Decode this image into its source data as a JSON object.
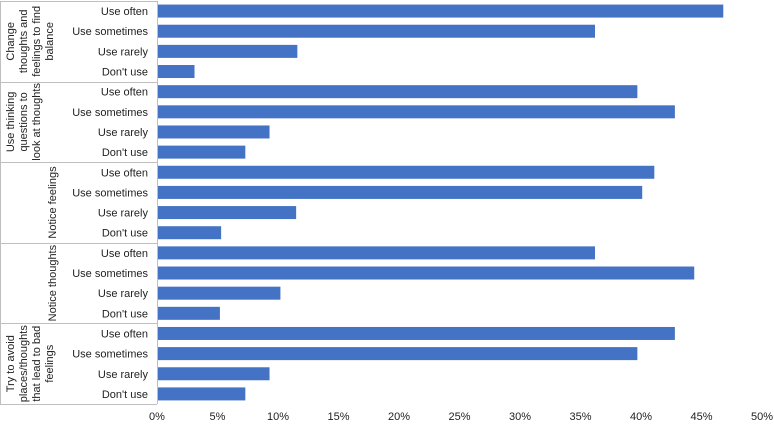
{
  "chart_data": {
    "type": "bar",
    "orientation": "horizontal",
    "title": "",
    "xlabel": "",
    "ylabel": "",
    "xlim": [
      0,
      50
    ],
    "x_tick_labels": [
      "0%",
      "5%",
      "10%",
      "15%",
      "20%",
      "25%",
      "30%",
      "35%",
      "40%",
      "45%",
      "50%"
    ],
    "x_ticks": [
      0,
      5,
      10,
      15,
      20,
      25,
      30,
      35,
      40,
      45,
      50
    ],
    "grid": false,
    "bar_color": "#4472C4",
    "groups": [
      {
        "name": "Change thoughts and feelings to find balance",
        "label_lines": [
          "Change",
          "thoughts and",
          "feelings to find",
          "balance"
        ],
        "categories": [
          "Use often",
          "Use sometimes",
          "Use rarely",
          "Don't use"
        ],
        "values": [
          46.8,
          36.2,
          11.6,
          3.1
        ]
      },
      {
        "name": "Use thinking questions to look at thoughts",
        "label_lines": [
          "Use thinking",
          "questions to",
          "look at thoughts"
        ],
        "categories": [
          "Use often",
          "Use sometimes",
          "Use rarely",
          "Don't use"
        ],
        "values": [
          39.7,
          42.8,
          9.3,
          7.3
        ]
      },
      {
        "name": "Notice feelings",
        "label_lines": [
          "Notice feelings"
        ],
        "categories": [
          "Use often",
          "Use sometimes",
          "Use rarely",
          "Don't use"
        ],
        "values": [
          41.1,
          40.1,
          11.5,
          5.3
        ]
      },
      {
        "name": "Notice thoughts",
        "label_lines": [
          "Notice thoughts"
        ],
        "categories": [
          "Use often",
          "Use sometimes",
          "Use rarely",
          "Don't use"
        ],
        "values": [
          36.2,
          44.4,
          10.2,
          5.2
        ]
      },
      {
        "name": "Try to avoid places/thoughts that lead to bad feelings",
        "label_lines": [
          "Try to avoid",
          "places/thoughts",
          "that lead to bad",
          "feelings"
        ],
        "categories": [
          "Use often",
          "Use sometimes",
          "Use rarely",
          "Don't use"
        ],
        "values": [
          42.8,
          39.7,
          9.3,
          7.3
        ]
      }
    ]
  }
}
